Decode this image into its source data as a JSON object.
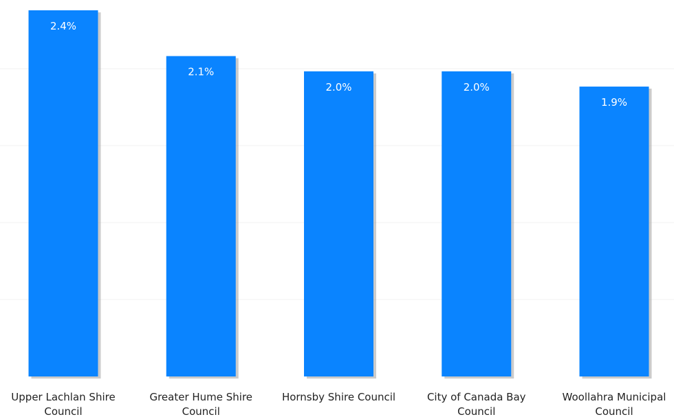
{
  "chart_data": {
    "type": "bar",
    "title": "",
    "xlabel": "",
    "ylabel": "",
    "ylim": [
      0,
      2.4
    ],
    "grid": true,
    "legend": "none",
    "categories": [
      [
        "Upper Lachlan Shire",
        "Council"
      ],
      [
        "Greater Hume Shire",
        "Council"
      ],
      [
        "Hornsby Shire Council"
      ],
      [
        "City of Canada Bay",
        "Council"
      ],
      [
        "Woollahra Municipal",
        "Council"
      ]
    ],
    "values": [
      2.4,
      2.1,
      2.0,
      2.0,
      1.9
    ],
    "value_units": "%",
    "data_labels": [
      "2.4%",
      "2.1%",
      "2.0%",
      "2.0%",
      "1.9%"
    ],
    "colors": {
      "bar": "#0a84ff",
      "gridline": "#f2f2f2",
      "data_label": "#ffffff",
      "tick_label": "#222222"
    }
  }
}
